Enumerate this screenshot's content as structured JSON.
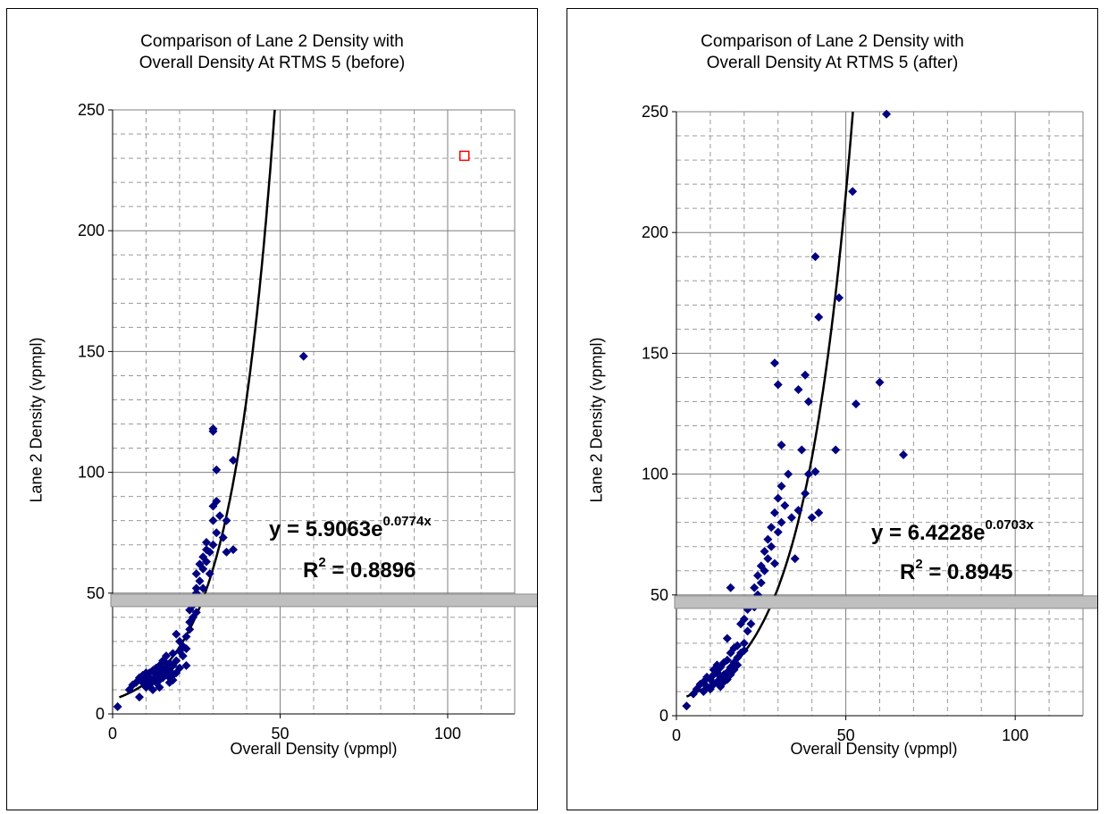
{
  "chart_data": [
    {
      "type": "scatter",
      "title": [
        "Comparison of Lane 2 Density with",
        "Overall Density At RTMS 5 (before)"
      ],
      "xlabel": "Overall Density (vpmpl)",
      "ylabel": "Lane 2 Density (vpmpl)",
      "xlim": [
        0,
        120
      ],
      "ylim": [
        0,
        250
      ],
      "xticks": [
        "0",
        "50",
        "100"
      ],
      "yticks": [
        "0",
        "50",
        "100",
        "150",
        "200",
        "250"
      ],
      "grid": true,
      "threshold_band_y": 47,
      "trendline": {
        "type": "exponential",
        "a": 5.9063,
        "b": 0.0774,
        "x_from": 2
      },
      "equation": {
        "lhs": "y = 5.9063e",
        "exp": "0.0774x",
        "r2_label": "R",
        "r2_sup": "2",
        "r2_value": " = 0.8896"
      },
      "marker_color": "#000080",
      "trend_color": "#000000",
      "outlier": {
        "x": 105,
        "y": 231,
        "color": "#ff0000"
      },
      "series": [
        {
          "x": [
            1.5,
            5,
            6,
            7,
            8,
            8,
            9,
            9,
            10,
            10,
            10,
            11,
            11,
            11,
            12,
            12,
            12,
            13,
            13,
            13,
            14,
            14,
            14,
            14,
            15,
            15,
            15,
            16,
            16,
            16,
            16,
            17,
            17,
            17,
            17,
            18,
            18,
            18,
            18,
            19,
            19,
            19,
            20,
            20,
            20,
            21,
            21,
            22,
            22,
            22,
            23,
            23,
            23,
            24,
            24,
            24,
            25,
            25,
            25,
            25,
            26,
            26,
            26,
            27,
            27,
            27,
            28,
            28,
            28,
            29,
            29,
            30,
            30,
            30,
            31,
            31,
            32,
            33,
            34,
            36,
            57,
            30,
            30,
            31,
            36,
            34
          ],
          "y": [
            3,
            10,
            12,
            13,
            15,
            7,
            13,
            16,
            17,
            11,
            14,
            15,
            12,
            17,
            18,
            14,
            10,
            16,
            19,
            13,
            20,
            14,
            17,
            11,
            22,
            18,
            15,
            21,
            17,
            19,
            24,
            15,
            18,
            21,
            13,
            16,
            20,
            25,
            14,
            17,
            22,
            33,
            19,
            26,
            30,
            24,
            28,
            20,
            32,
            27,
            38,
            35,
            43,
            48,
            40,
            45,
            50,
            42,
            52,
            58,
            46,
            55,
            62,
            52,
            60,
            65,
            68,
            63,
            71,
            58,
            67,
            80,
            70,
            86,
            75,
            88,
            82,
            73,
            80,
            68,
            148,
            118,
            117,
            101,
            105,
            67
          ]
        }
      ]
    },
    {
      "type": "scatter",
      "title": [
        "Comparison of Lane 2 Density with",
        "Overall Density At RTMS 5 (after)"
      ],
      "xlabel": "Overall Density (vpmpl)",
      "ylabel": "Lane 2 Density (vpmpl)",
      "xlim": [
        0,
        120
      ],
      "ylim": [
        0,
        250
      ],
      "xticks": [
        "0",
        "50",
        "100"
      ],
      "yticks": [
        "0",
        "50",
        "100",
        "150",
        "200",
        "250"
      ],
      "grid": true,
      "threshold_band_y": 47,
      "trendline": {
        "type": "exponential",
        "a": 6.4228,
        "b": 0.0703,
        "x_from": 3
      },
      "equation": {
        "lhs": "y = 6.4228e",
        "exp": "0.0703x",
        "r2_label": "R",
        "r2_sup": "2",
        "r2_value": " = 0.8945"
      },
      "marker_color": "#000080",
      "trend_color": "#000000",
      "series": [
        {
          "x": [
            3,
            5,
            6,
            7,
            8,
            8,
            9,
            9,
            10,
            10,
            11,
            11,
            11,
            12,
            12,
            12,
            13,
            13,
            13,
            14,
            14,
            14,
            15,
            15,
            15,
            15,
            16,
            16,
            16,
            17,
            17,
            17,
            18,
            18,
            18,
            19,
            19,
            20,
            20,
            20,
            21,
            21,
            22,
            22,
            23,
            23,
            24,
            24,
            25,
            25,
            26,
            26,
            27,
            27,
            28,
            28,
            29,
            29,
            30,
            30,
            31,
            31,
            32,
            33,
            34,
            35,
            36,
            37,
            38,
            39,
            40,
            41,
            42,
            16,
            29,
            30,
            31,
            36,
            38,
            39,
            41,
            42,
            47,
            48,
            52,
            53,
            60,
            62,
            67
          ],
          "y": [
            4,
            9,
            11,
            13,
            14,
            10,
            12,
            16,
            15,
            11,
            17,
            13,
            19,
            14,
            18,
            21,
            16,
            20,
            12,
            22,
            17,
            14,
            18,
            23,
            15,
            32,
            20,
            26,
            17,
            22,
            28,
            19,
            24,
            29,
            21,
            26,
            38,
            30,
            40,
            27,
            35,
            44,
            48,
            38,
            53,
            45,
            58,
            50,
            62,
            55,
            68,
            60,
            73,
            65,
            78,
            70,
            84,
            63,
            90,
            76,
            80,
            95,
            87,
            100,
            82,
            65,
            85,
            110,
            92,
            100,
            82,
            101,
            84,
            53,
            146,
            137,
            112,
            135,
            141,
            130,
            190,
            165,
            110,
            173,
            217,
            129,
            138,
            249,
            108
          ]
        }
      ]
    }
  ]
}
